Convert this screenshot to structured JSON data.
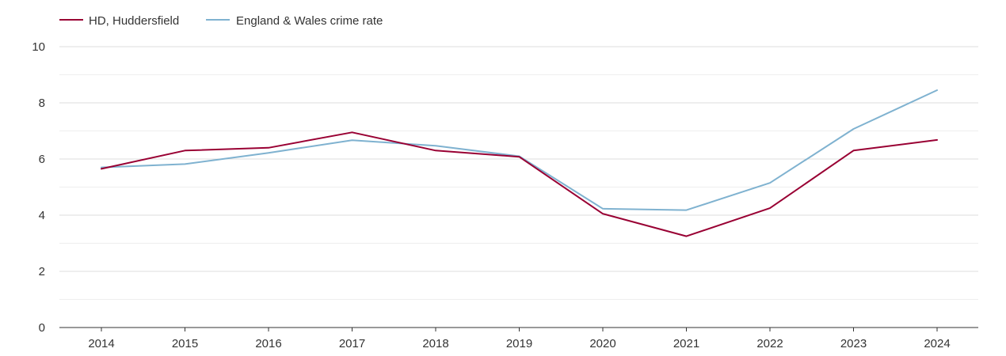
{
  "chart_data": {
    "type": "line",
    "title": "",
    "xlabel": "",
    "ylabel": "",
    "categories": [
      "2014",
      "2015",
      "2016",
      "2017",
      "2018",
      "2019",
      "2020",
      "2021",
      "2022",
      "2023",
      "2024"
    ],
    "y_ticks": [
      "0",
      "2",
      "4",
      "6",
      "8",
      "10"
    ],
    "ylim": [
      0,
      10
    ],
    "grid": true,
    "legend_position": "top-left",
    "series": [
      {
        "name": "HD, Huddersfield",
        "color": "#990033",
        "values": [
          5.65,
          6.3,
          6.4,
          6.95,
          6.3,
          6.08,
          4.05,
          3.25,
          4.25,
          6.3,
          6.68
        ]
      },
      {
        "name": "England & Wales crime rate",
        "color": "#7fb2d0",
        "values": [
          5.7,
          5.82,
          6.22,
          6.67,
          6.47,
          6.1,
          4.23,
          4.18,
          5.15,
          7.07,
          8.45
        ]
      }
    ]
  }
}
